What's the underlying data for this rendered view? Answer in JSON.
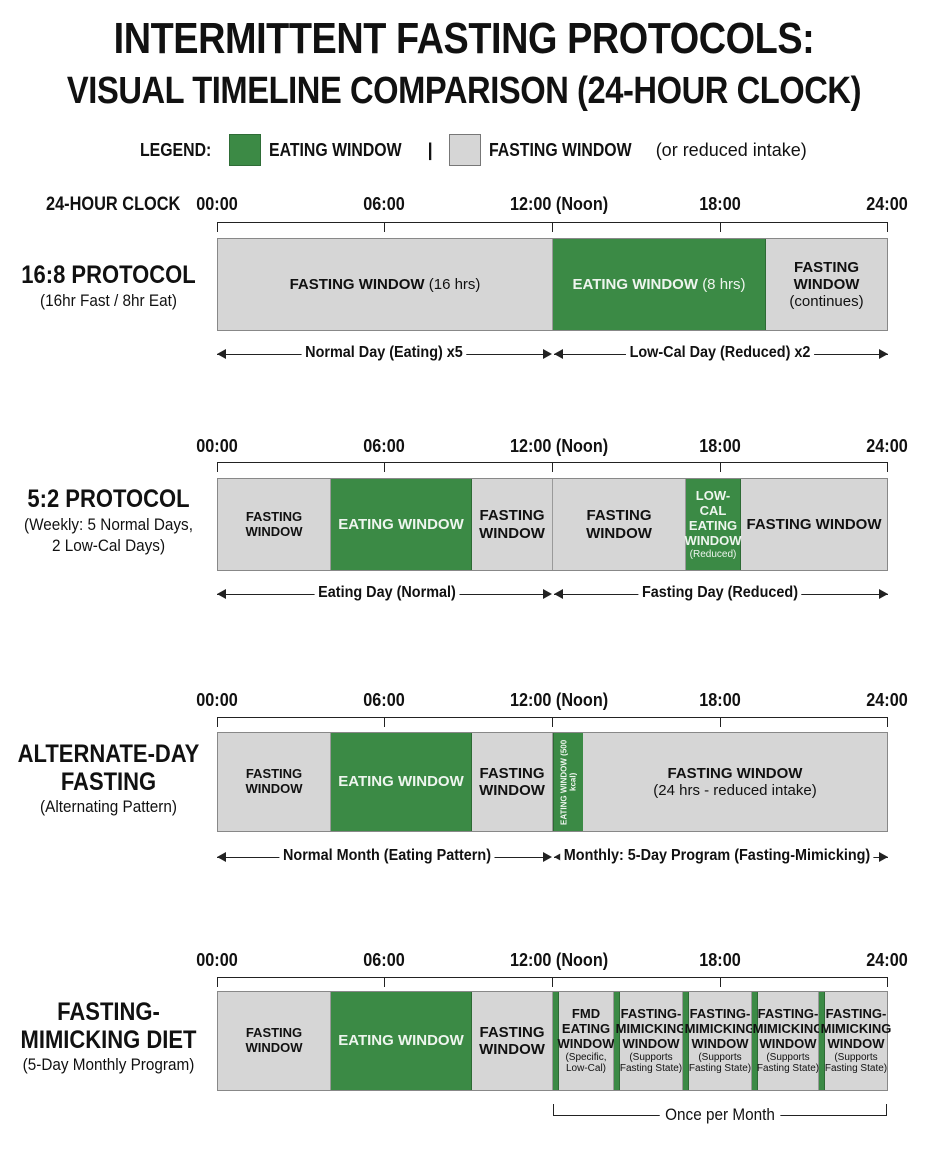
{
  "title": {
    "line1": "INTERMITTENT FASTING PROTOCOLS:",
    "line2": "VISUAL TIMELINE COMPARISON (24-HOUR CLOCK)"
  },
  "legend": {
    "label": "LEGEND:",
    "eating": "EATING WINDOW",
    "separator": "|",
    "fasting": "FASTING WINDOW",
    "fasting_note": "(or reduced intake)"
  },
  "colors": {
    "eating": "#3b8a45",
    "fasting": "#d6d6d6"
  },
  "clock_header": "24-HOUR CLOCK",
  "ticks": [
    "00:00",
    "06:00",
    "12:00 (Noon)",
    "18:00",
    "24:00"
  ],
  "protocols": [
    {
      "title": "16:8 PROTOCOL",
      "subtitle": "(16hr Fast / 8hr Eat)",
      "seg1": "FASTING WINDOW",
      "seg1_note": "(16 hrs)",
      "seg2": "EATING WINDOW",
      "seg2_note": "(8 hrs)",
      "seg3": "FASTING WINDOW",
      "seg3_note": "(continues)",
      "arrow_left": "Normal Day (Eating) x5",
      "arrow_right": "Low-Cal Day (Reduced) x2"
    },
    {
      "title": "5:2 PROTOCOL",
      "subtitle1": "(Weekly: 5 Normal Days,",
      "subtitle2": "2 Low-Cal Days)",
      "seg1": "FASTING WINDOW",
      "seg2": "EATING WINDOW",
      "seg3a": "FASTING",
      "seg3b": "WINDOW",
      "seg4": "FASTING WINDOW",
      "seg5a": "LOW-CAL",
      "seg5b": "EATING",
      "seg5c": "WINDOW",
      "seg5_note": "(Reduced)",
      "seg6": "FASTING WINDOW",
      "arrow_left": "Eating Day (Normal)",
      "arrow_right": "Fasting Day (Reduced)"
    },
    {
      "title1": "ALTERNATE-DAY",
      "title2": "FASTING",
      "subtitle": "(Alternating Pattern)",
      "seg1": "FASTING WINDOW",
      "seg2": "EATING WINDOW",
      "seg3a": "FASTING",
      "seg3b": "WINDOW",
      "seg4": "EATING WINDOW (500 kcal)",
      "seg5": "FASTING WINDOW",
      "seg5_note": "(24 hrs - reduced intake)",
      "arrow_left": "Normal Month (Eating Pattern)",
      "arrow_right": "Monthly: 5-Day Program (Fasting-Mimicking)"
    },
    {
      "title1": "FASTING-",
      "title2": "MIMICKING DIET",
      "subtitle": "(5-Day Monthly Program)",
      "seg1": "FASTING WINDOW",
      "seg2": "EATING WINDOW",
      "seg3a": "FASTING",
      "seg3b": "WINDOW",
      "fmd_a": "FMD",
      "fmd_b": "EATING",
      "fmd_c": "WINDOW",
      "fmd_note1": "(Specific,",
      "fmd_note2": "Low-Cal)",
      "mim_a": "FASTING-",
      "mim_b": "MIMICKING",
      "mim_c": "WINDOW",
      "mim_note1": "(Supports",
      "mim_note2": "Fasting State)",
      "bracket": "Once per Month"
    }
  ]
}
